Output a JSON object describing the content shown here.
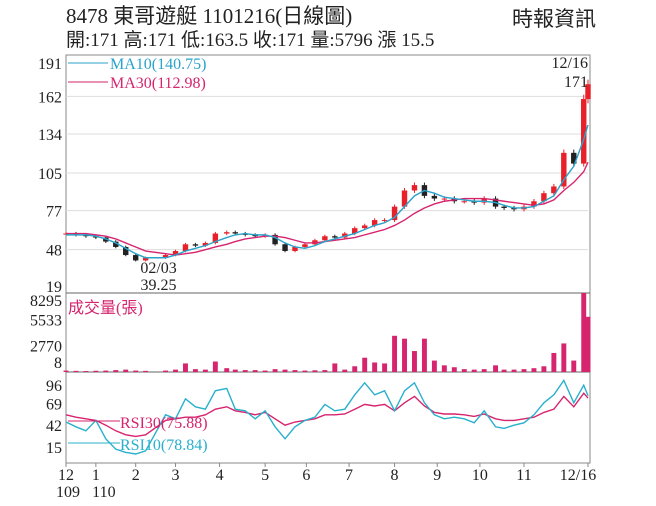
{
  "header": {
    "title": "8478  東哥遊艇 1101216(日線圖)",
    "source": "時報資訊",
    "quote": "開:171 高:171 低:163.5 收:171 量:5796 漲 15.5"
  },
  "colors": {
    "ma10": "#29a3c9",
    "ma30": "#d6246e",
    "up": "#e8202a",
    "down": "#222222",
    "volume": "#d6246e",
    "rsi10": "#29b0cc",
    "rsi30": "#d6246e",
    "grid": "#dddddd"
  },
  "chart_data": [
    {
      "type": "candlestick",
      "panel": "price",
      "yticks": [
        191,
        162,
        134,
        105,
        77,
        48,
        19
      ],
      "ylim": [
        19,
        191
      ],
      "grid": true,
      "legend": [
        {
          "name": "MA10(140.75)",
          "series": "ma10"
        },
        {
          "name": "MA30(112.98)",
          "series": "ma30"
        }
      ],
      "annotations": [
        {
          "date": "2021-02-03",
          "label": "02/03",
          "value": "39.25"
        },
        {
          "date": "2021-12-16",
          "label": "12/16",
          "value": "171"
        }
      ],
      "dates": [
        "2020-12-14",
        "2020-12-21",
        "2020-12-28",
        "2021-01-04",
        "2021-01-11",
        "2021-01-18",
        "2021-01-25",
        "2021-02-01",
        "2021-02-08",
        "2021-02-22",
        "2021-03-01",
        "2021-03-08",
        "2021-03-15",
        "2021-03-22",
        "2021-03-29",
        "2021-04-06",
        "2021-04-12",
        "2021-04-19",
        "2021-04-26",
        "2021-05-03",
        "2021-05-10",
        "2021-05-17",
        "2021-05-24",
        "2021-05-31",
        "2021-06-07",
        "2021-06-14",
        "2021-06-21",
        "2021-06-28",
        "2021-07-05",
        "2021-07-12",
        "2021-07-19",
        "2021-07-26",
        "2021-08-02",
        "2021-08-09",
        "2021-08-16",
        "2021-08-23",
        "2021-08-30",
        "2021-09-06",
        "2021-09-13",
        "2021-09-20",
        "2021-09-27",
        "2021-10-04",
        "2021-10-12",
        "2021-10-18",
        "2021-10-25",
        "2021-11-01",
        "2021-11-08",
        "2021-11-15",
        "2021-11-22",
        "2021-11-29",
        "2021-12-06",
        "2021-12-13",
        "2021-12-16"
      ],
      "close": [
        60,
        59,
        58,
        57,
        54,
        50,
        44,
        40,
        42,
        44,
        47,
        52,
        51,
        53,
        60,
        61,
        60,
        59,
        58,
        59,
        52,
        47,
        50,
        52,
        55,
        58,
        57,
        60,
        64,
        66,
        70,
        70,
        80,
        92,
        96,
        88,
        86,
        86,
        84,
        84,
        83,
        86,
        80,
        79,
        78,
        80,
        84,
        90,
        95,
        120,
        112,
        160,
        171
      ],
      "ma10": [
        59,
        59,
        59,
        58,
        56,
        53,
        49,
        45,
        42,
        42,
        44,
        47,
        49,
        51,
        54,
        57,
        59,
        60,
        59,
        59,
        57,
        53,
        50,
        49,
        51,
        54,
        56,
        58,
        60,
        63,
        66,
        68,
        72,
        80,
        88,
        92,
        90,
        87,
        86,
        85,
        84,
        84,
        83,
        81,
        79,
        79,
        80,
        84,
        88,
        100,
        110,
        130,
        140.75
      ],
      "ma30": [
        60,
        60,
        60,
        59,
        58,
        56,
        53,
        50,
        47,
        45,
        44,
        45,
        46,
        48,
        50,
        52,
        54,
        56,
        57,
        58,
        58,
        57,
        55,
        53,
        53,
        54,
        55,
        56,
        57,
        59,
        61,
        63,
        66,
        70,
        75,
        79,
        82,
        84,
        85,
        86,
        86,
        86,
        85,
        84,
        83,
        82,
        81,
        82,
        85,
        92,
        98,
        106,
        112.98
      ],
      "volume_panel": {
        "label": "成交量(張)",
        "yticks": [
          8295,
          5533,
          2770,
          8
        ],
        "ylim": [
          0,
          8295
        ],
        "values": [
          150,
          120,
          100,
          130,
          150,
          200,
          250,
          150,
          120,
          150,
          250,
          900,
          300,
          250,
          1100,
          400,
          250,
          200,
          200,
          150,
          300,
          250,
          200,
          150,
          180,
          200,
          900,
          250,
          600,
          1500,
          1000,
          900,
          3800,
          3500,
          2200,
          3500,
          1200,
          700,
          500,
          300,
          250,
          300,
          700,
          250,
          250,
          300,
          400,
          600,
          2000,
          3000,
          1200,
          8295,
          5796
        ]
      },
      "rsi_panel": {
        "yticks": [
          96,
          69,
          42,
          15
        ],
        "legend": [
          {
            "name": "RSI30(75.88)",
            "series": "rsi30"
          },
          {
            "name": "RSI10(78.84)",
            "series": "rsi10"
          }
        ],
        "rsi10": [
          46,
          40,
          35,
          48,
          25,
          12,
          8,
          6,
          10,
          55,
          50,
          75,
          65,
          62,
          85,
          88,
          62,
          60,
          50,
          60,
          40,
          25,
          40,
          48,
          52,
          68,
          60,
          62,
          80,
          95,
          80,
          85,
          60,
          85,
          95,
          70,
          55,
          50,
          52,
          50,
          45,
          60,
          40,
          38,
          42,
          45,
          55,
          70,
          80,
          98,
          70,
          92,
          78.84
        ],
        "rsi30": [
          55,
          52,
          50,
          48,
          42,
          35,
          30,
          28,
          30,
          48,
          50,
          52,
          52,
          55,
          62,
          65,
          60,
          58,
          55,
          58,
          50,
          42,
          46,
          48,
          50,
          55,
          55,
          56,
          62,
          68,
          66,
          68,
          60,
          70,
          78,
          66,
          58,
          56,
          56,
          55,
          53,
          56,
          50,
          48,
          48,
          50,
          52,
          58,
          62,
          78,
          65,
          82,
          75.88
        ]
      },
      "xticks": [
        {
          "label": "12",
          "sub": "109",
          "date": "2020-12-14"
        },
        {
          "label": "1",
          "sub": "110",
          "date": "2021-01-04"
        },
        {
          "label": "2",
          "date": "2021-02-01"
        },
        {
          "label": "3",
          "date": "2021-03-01"
        },
        {
          "label": "4",
          "date": "2021-04-01"
        },
        {
          "label": "5",
          "date": "2021-05-03"
        },
        {
          "label": "6",
          "date": "2021-06-01"
        },
        {
          "label": "7",
          "date": "2021-07-01"
        },
        {
          "label": "8",
          "date": "2021-08-02"
        },
        {
          "label": "9",
          "date": "2021-09-01"
        },
        {
          "label": "10",
          "date": "2021-10-01"
        },
        {
          "label": "11",
          "date": "2021-11-01"
        },
        {
          "label": "12/16",
          "date": "2021-12-16"
        }
      ]
    }
  ]
}
